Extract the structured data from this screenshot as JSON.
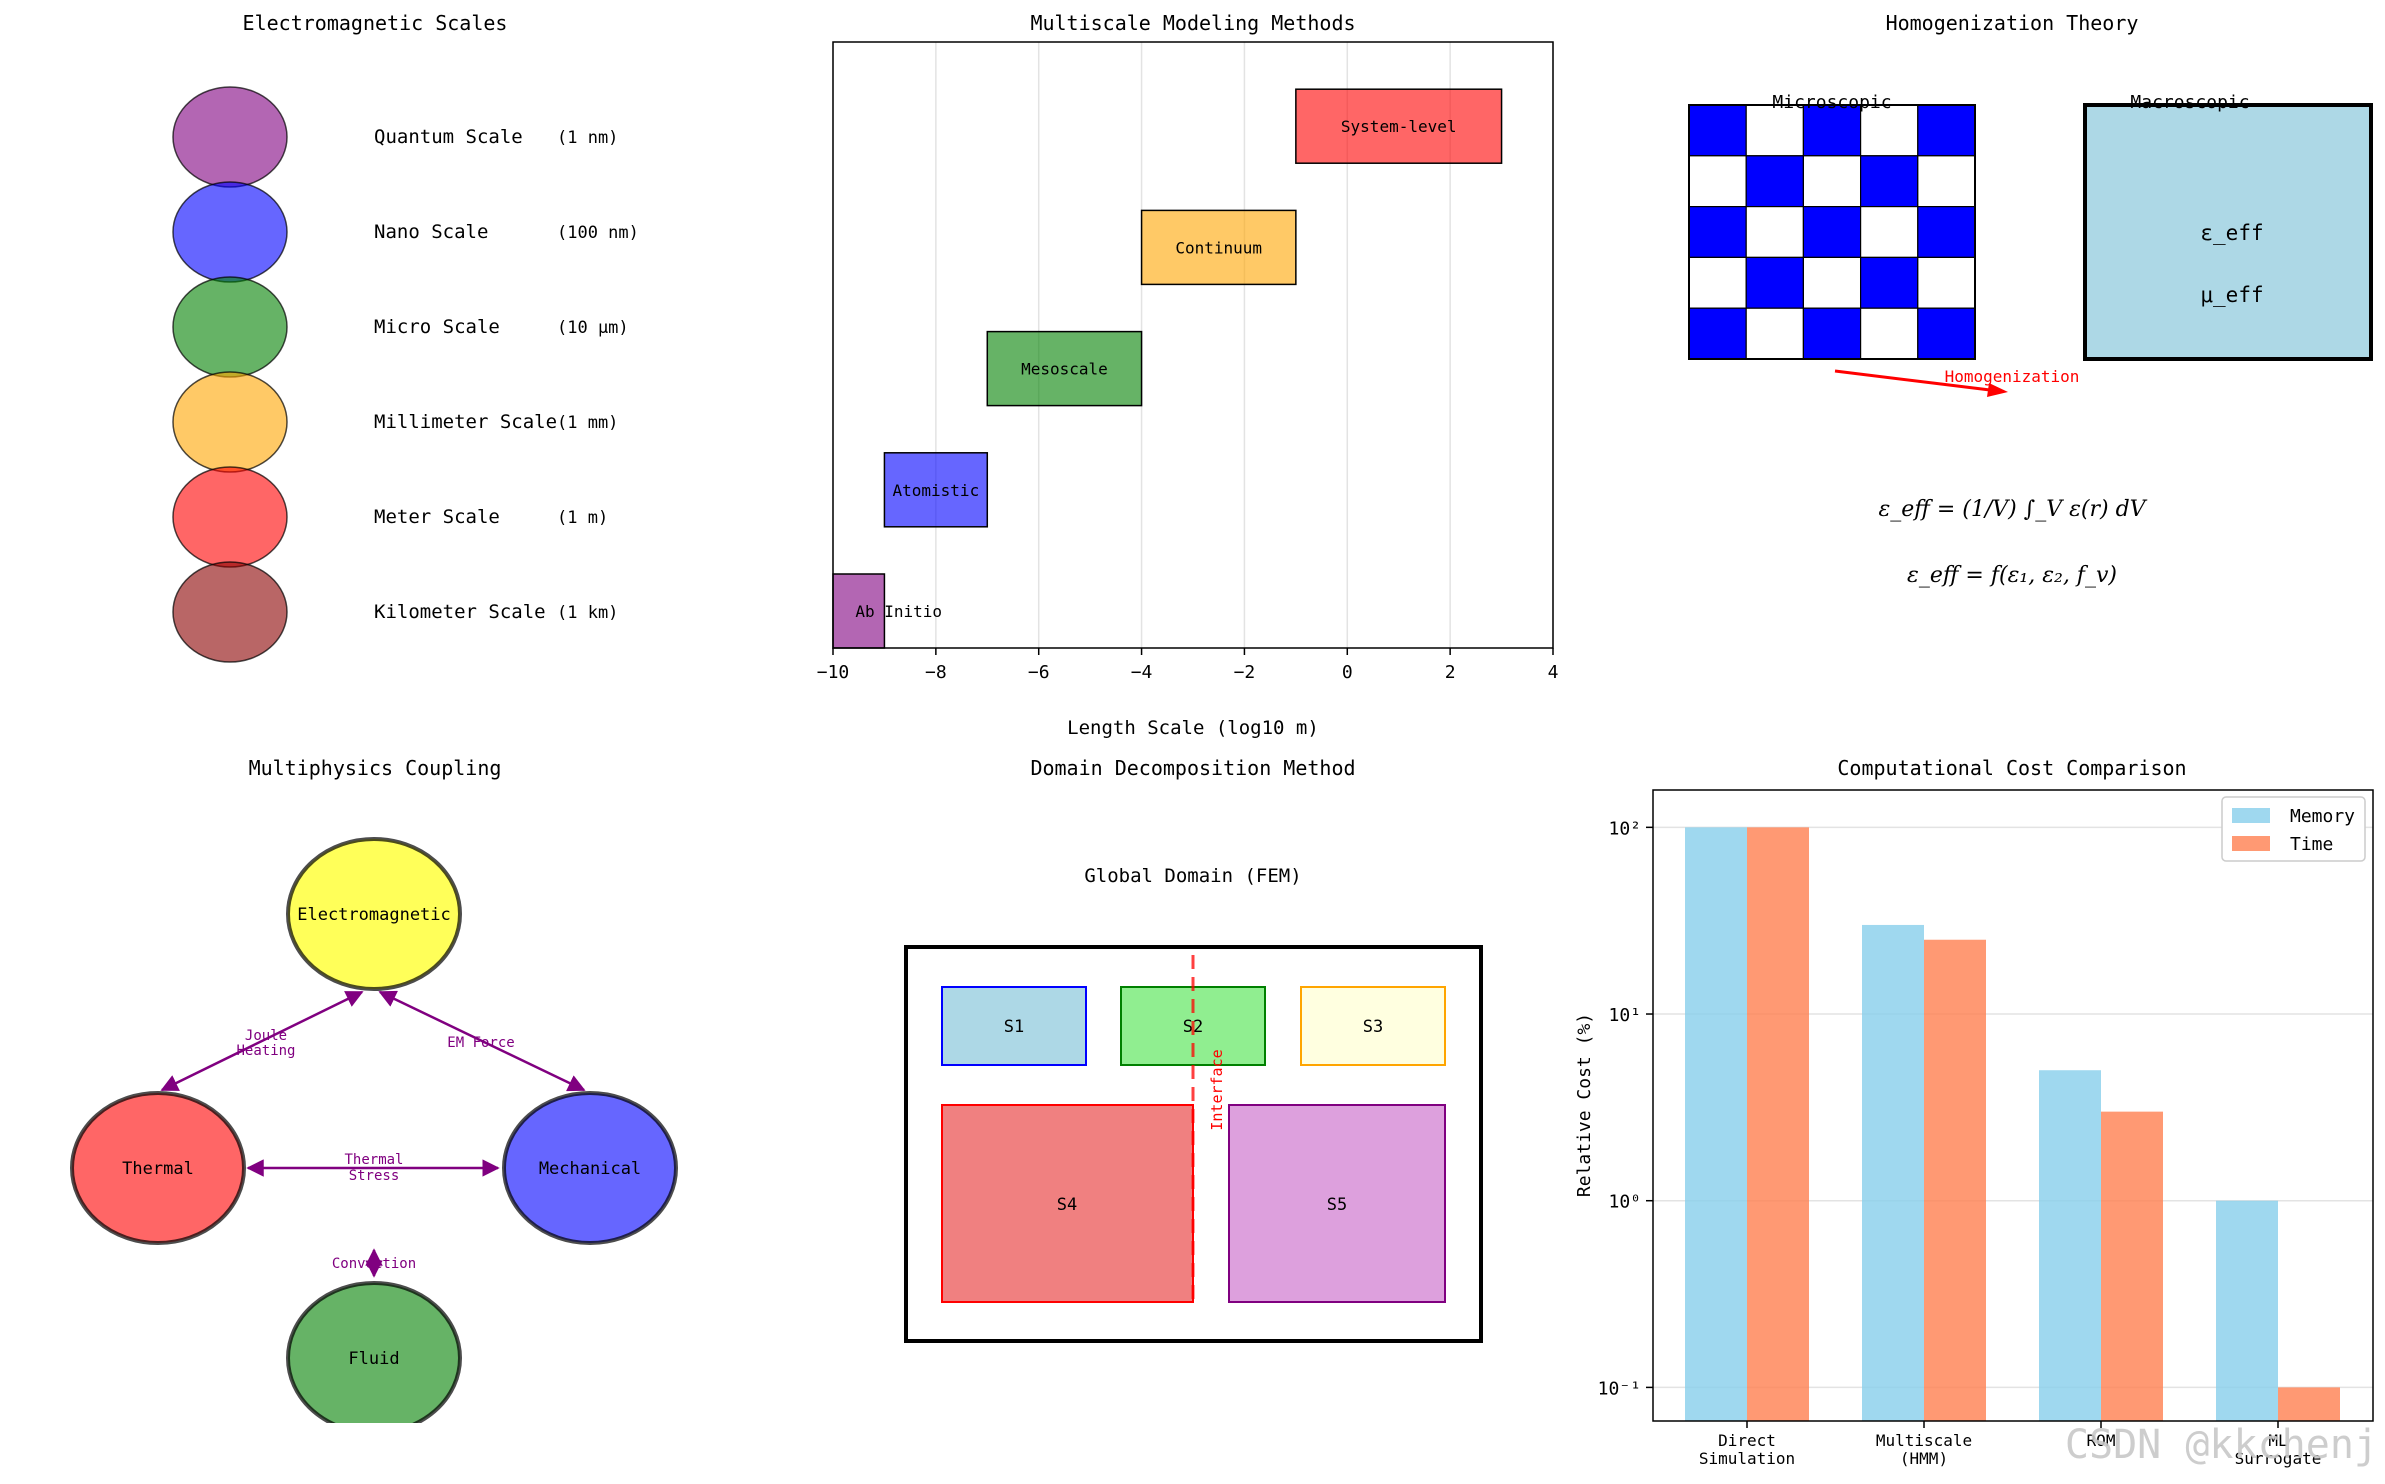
{
  "scales_panel": {
    "title": "Electromagnetic Scales",
    "items": [
      {
        "name": "Quantum Scale",
        "size": "(1 nm)",
        "color": "#800080"
      },
      {
        "name": "Nano Scale",
        "size": "(100 nm)",
        "color": "#0000ff"
      },
      {
        "name": "Micro Scale",
        "size": "(10 μm)",
        "color": "#008000"
      },
      {
        "name": "Millimeter Scale",
        "size": "(1 mm)",
        "color": "#ffa500"
      },
      {
        "name": "Meter Scale",
        "size": "(1 m)",
        "color": "#ff0000"
      },
      {
        "name": "Kilometer Scale",
        "size": "(1 km)",
        "color": "#8b0000"
      }
    ]
  },
  "chart_data": [
    {
      "type": "bar",
      "orientation": "horizontal-range",
      "title": "Multiscale Modeling Methods",
      "xlabel": "Length Scale (log10 m)",
      "xlim": [
        -10,
        4
      ],
      "xticks": [
        "−10",
        "−8",
        "−6",
        "−4",
        "−2",
        "0",
        "2",
        "4"
      ],
      "grid": "x",
      "bars": [
        {
          "label": "Ab Initio",
          "start": -10,
          "end": -9,
          "color": "#800080"
        },
        {
          "label": "Atomistic",
          "start": -9,
          "end": -7,
          "color": "#0000ff"
        },
        {
          "label": "Mesoscale",
          "start": -7,
          "end": -4,
          "color": "#008000"
        },
        {
          "label": "Continuum",
          "start": -4,
          "end": -1,
          "color": "#ffa500"
        },
        {
          "label": "System-level",
          "start": -1,
          "end": 3,
          "color": "#ff0000"
        }
      ]
    },
    {
      "type": "bar",
      "title": "Computational Cost Comparison",
      "ylabel": "Relative Cost (%)",
      "yscale": "log",
      "yticks": [
        "10⁻¹",
        "10⁰",
        "10¹",
        "10²"
      ],
      "categories": [
        "Direct\nSimulation",
        "Multiscale\n(HMM)",
        "ROM",
        "ML\nSurrogate"
      ],
      "series": [
        {
          "name": "Memory",
          "values": [
            100,
            30,
            5,
            1
          ],
          "color": "#87ceeb"
        },
        {
          "name": "Time",
          "values": [
            100,
            25,
            3,
            0.1
          ],
          "color": "#ff7f50"
        }
      ],
      "legend": "top-right"
    }
  ],
  "homog": {
    "title": "Homogenization Theory",
    "micro_label": "Microscopic",
    "macro_label": "Macroscopic",
    "eps_eff": "ε_eff",
    "mu_eff": "μ_eff",
    "arrow_label": "Homogenization",
    "formula1": "ε_eff = (1/V) ∫_V ε(r) dV",
    "formula2": "ε_eff = f(ε₁, ε₂, f_v)"
  },
  "multiphysics": {
    "title": "Multiphysics Coupling",
    "nodes": [
      {
        "label": "Electromagnetic",
        "color": "#ffff00"
      },
      {
        "label": "Thermal",
        "color": "#ff0000"
      },
      {
        "label": "Mechanical",
        "color": "#0000ff"
      },
      {
        "label": "Fluid",
        "color": "#008000"
      }
    ],
    "edges": {
      "joule_1": "Joule",
      "joule_2": "Heating",
      "em_force": "EM Force",
      "stress_1": "Thermal",
      "stress_2": "Stress",
      "convection": "Convection"
    }
  },
  "domain": {
    "title": "Domain Decomposition Method",
    "global_label": "Global Domain (FEM)",
    "interface_label": "Interface",
    "subdomains": [
      {
        "label": "S1",
        "fill": "#add8e6",
        "stroke": "#0000ff"
      },
      {
        "label": "S2",
        "fill": "#90ee90",
        "stroke": "#008000"
      },
      {
        "label": "S3",
        "fill": "#ffffe0",
        "stroke": "#ffa500"
      },
      {
        "label": "S4",
        "fill": "#f08080",
        "stroke": "#ff0000"
      },
      {
        "label": "S5",
        "fill": "#dda0dd",
        "stroke": "#800080"
      }
    ]
  },
  "watermark": "CSDN @kkchenj"
}
